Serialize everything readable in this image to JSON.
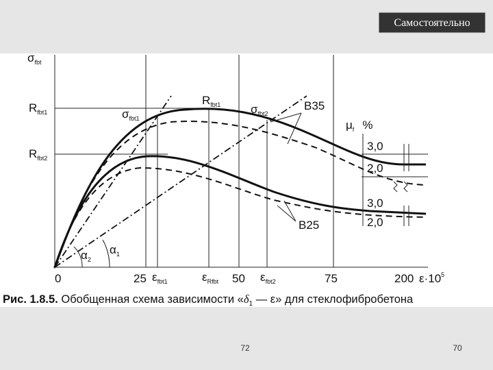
{
  "header": {
    "badge": "Самостоятельно"
  },
  "figure": {
    "y_axis": {
      "main": "σ",
      "sub": "fbt"
    },
    "r1": {
      "main": "R",
      "sub": "fbt1"
    },
    "r2": {
      "main": "R",
      "sub": "fbt2"
    },
    "sigma1": {
      "main": "σ",
      "sub": "fbt1"
    },
    "rpeak": {
      "main": "R",
      "sub": "fbt1"
    },
    "sigma2": {
      "main": "σ",
      "sub": "fbt2"
    },
    "b35": "B35",
    "b25": "B25",
    "mu": {
      "main": "μ",
      "sub": "f",
      "unit": "%"
    },
    "mu_values": [
      "3,0",
      "2,0",
      "3,0",
      "2,0"
    ],
    "alpha2": {
      "main": "α",
      "sub": "2"
    },
    "alpha1": {
      "main": "α",
      "sub": "1"
    },
    "x_ticks": [
      "0",
      "25",
      "50",
      "75",
      "200"
    ],
    "eps1": {
      "main": "ε",
      "sub": "fbt1"
    },
    "epsR": {
      "main": "ε",
      "sub": "Rfbt"
    },
    "eps2": {
      "main": "ε",
      "sub": "fbt2"
    },
    "x_axis": {
      "main": "ε·10",
      "sup": "5"
    }
  },
  "caption": {
    "label": "Рис. 1.8.5.",
    "before": " Обобщенная схема зависимости «",
    "symbol": "δ",
    "sub": "1",
    "after": " — ε» для стеклофибробетона"
  },
  "footer": {
    "left": "72",
    "right": "70"
  }
}
